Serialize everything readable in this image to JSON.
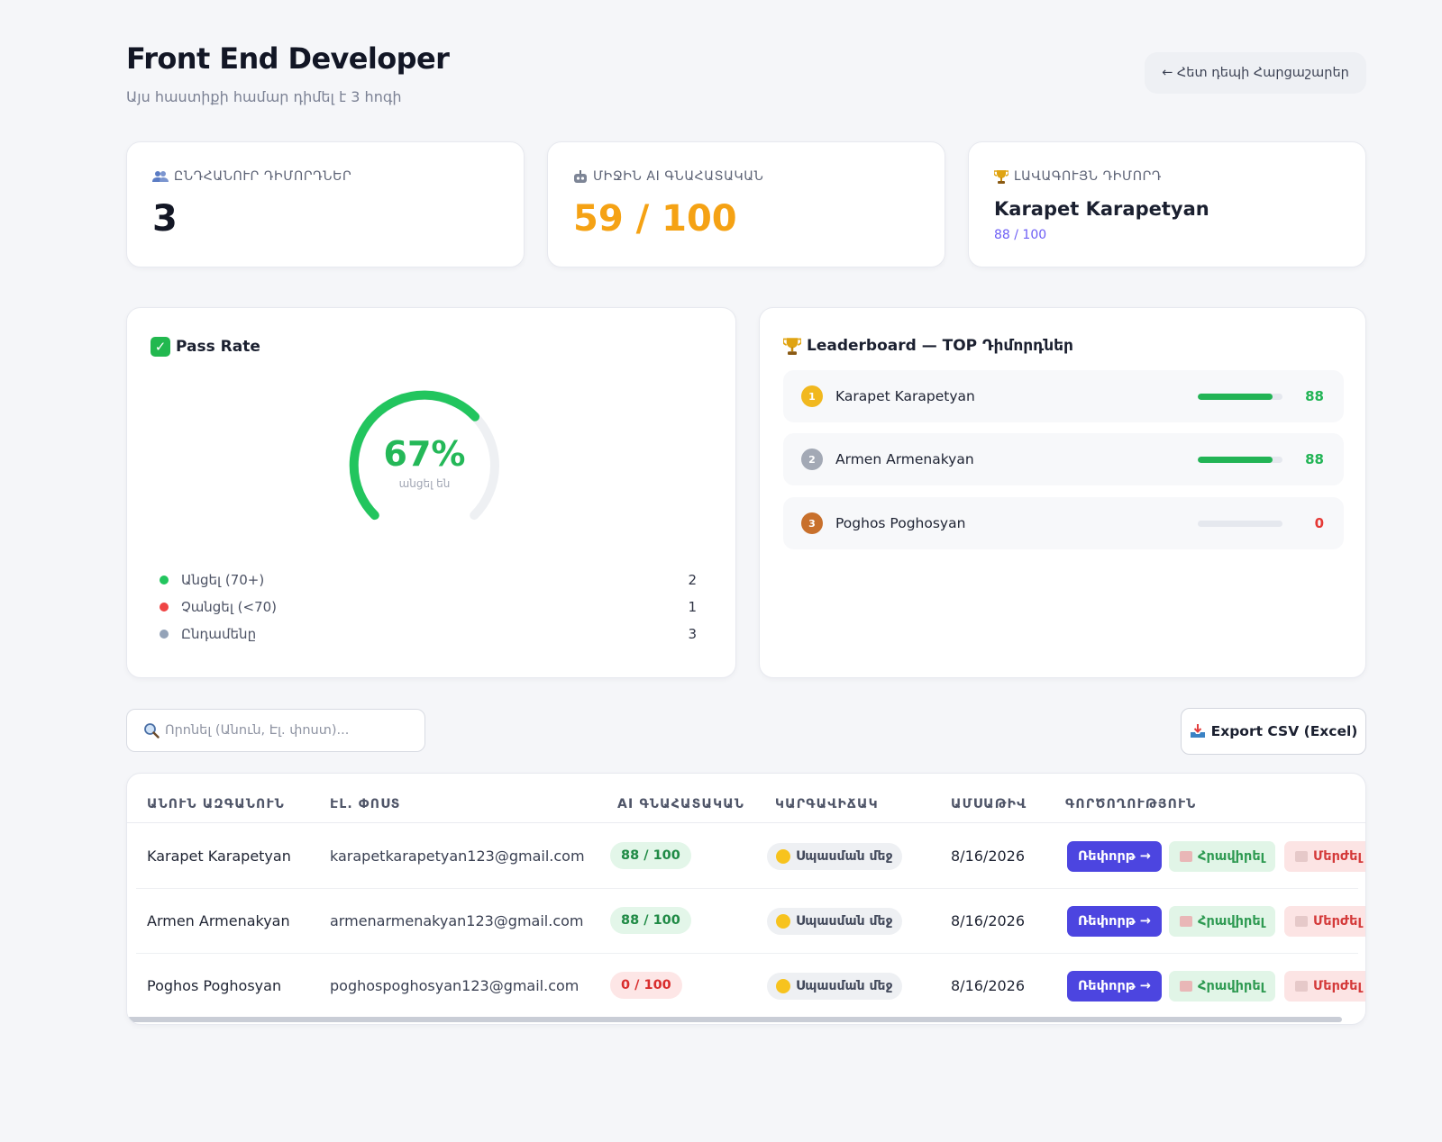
{
  "header": {
    "title": "Front End Developer",
    "subtitle": "Այս հաստիքի համար դիմել է 3 հոգի",
    "back_label": "← Հետ դեպի Հարցաշարեր"
  },
  "stats": {
    "total_label": "ԸՆԴՀԱՆՈՒՐ ԴԻՄՈՐԴՆԵՐ",
    "total_icon": "people-icon",
    "total_value": "3",
    "avg_label": "ՄԻՋԻՆ AI ԳՆԱՀԱՏԱԿԱՆ",
    "avg_icon": "robot-icon",
    "avg_value": "59 / 100",
    "best_label": "ԼԱՎԱԳՈՒՅՆ ԴԻՄՈՐԴ",
    "best_icon": "trophy-icon",
    "best_name": "Karapet Karapetyan",
    "best_score": "88 / 100"
  },
  "pass_rate": {
    "title": "Pass Rate",
    "percent_label": "67%",
    "percent": 0.67,
    "sub_label": "անցել են",
    "legend": [
      {
        "label": "Անցել (70+)",
        "count": "2",
        "color": "#22c55e"
      },
      {
        "label": "Չանցել (<70)",
        "count": "1",
        "color": "#ef4444"
      },
      {
        "label": "Ընդամենը",
        "count": "3",
        "color": "#94a3b8"
      }
    ]
  },
  "leaderboard": {
    "title": "Leaderboard — TOP Դիմորդներ",
    "rows": [
      {
        "name": "Karapet Karapetyan",
        "score": "88",
        "fraction": 0.88,
        "color": "#22b455",
        "medal": "gold-medal-icon",
        "medal_color": "#f1b81f",
        "rank": "1"
      },
      {
        "name": "Armen Armenakyan",
        "score": "88",
        "fraction": 0.88,
        "color": "#22b455",
        "medal": "silver-medal-icon",
        "medal_color": "#a3a9b5",
        "rank": "2"
      },
      {
        "name": "Poghos Poghosyan",
        "score": "0",
        "fraction": 0,
        "color": "#e53935",
        "medal": "bronze-medal-icon",
        "medal_color": "#c8702c",
        "rank": "3"
      }
    ]
  },
  "toolbar": {
    "search_placeholder": "Որոնել (Անուն, Էլ. փոստ)...",
    "export_label": "Export CSV (Excel)"
  },
  "table": {
    "columns": [
      "ԱՆՈՒՆ ԱԶԳԱՆՈՒՆ",
      "ԷԼ. ՓՈՍՏ",
      "AI ԳՆԱՀԱՏԱԿԱՆ",
      "ԿԱՐԳԱՎԻՃԱԿ",
      "ԱՄՍԱԹԻՎ",
      "ԳՈՐԾՈՂՈՒԹՅՈՒՆ"
    ],
    "rows": [
      {
        "name": "Karapet Karapetyan",
        "email": "karapetkarapetyan123@gmail.com",
        "score": "88 / 100",
        "score_state": "green",
        "status": "Սպասման մեջ",
        "date": "8/16/2026",
        "review": "Ռեփորթ →",
        "invite": "Հրավիրել",
        "reject": "Մերժել"
      },
      {
        "name": "Armen Armenakyan",
        "email": "armenarmenakyan123@gmail.com",
        "score": "88 / 100",
        "score_state": "green",
        "status": "Սպասման մեջ",
        "date": "8/16/2026",
        "review": "Ռեփորթ →",
        "invite": "Հրավիրել",
        "reject": "Մերժել"
      },
      {
        "name": "Poghos Poghosyan",
        "email": "poghospoghosyan123@gmail.com",
        "score": "0 / 100",
        "score_state": "red",
        "status": "Սպասման մեջ",
        "date": "8/16/2026",
        "review": "Ռեփորթ →",
        "invite": "Հրավիրել",
        "reject": "Մերժել"
      }
    ]
  }
}
